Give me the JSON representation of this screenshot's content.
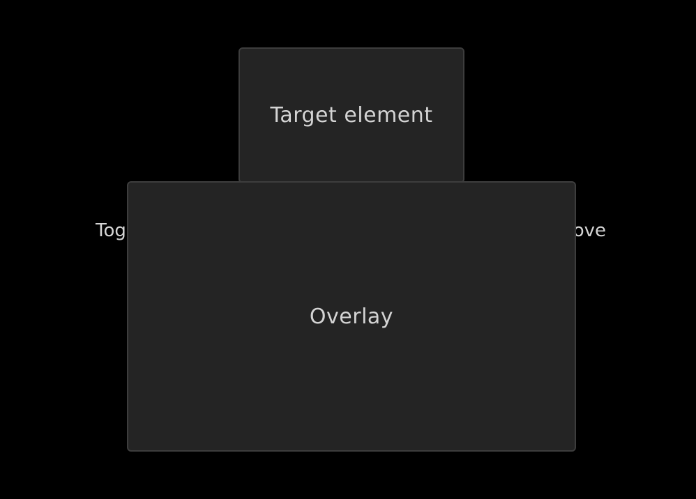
{
  "target": {
    "label": "Target element"
  },
  "partially_hidden_text": {
    "left_visible": "Tog",
    "right_visible": "ove"
  },
  "overlay": {
    "label": "Overlay"
  },
  "colors": {
    "background": "#000000",
    "panel": "#242424",
    "border": "#3d3d3d",
    "text": "#d4d4d4"
  }
}
